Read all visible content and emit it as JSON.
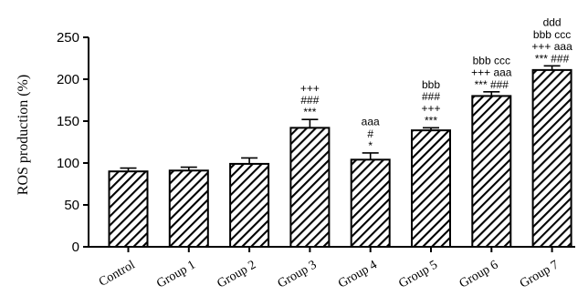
{
  "chart_data": {
    "type": "bar",
    "title": "",
    "xlabel": "",
    "ylabel": "ROS production (%)",
    "ylim": [
      0,
      250
    ],
    "yticks": [
      0,
      50,
      100,
      150,
      200,
      250
    ],
    "categories": [
      "Control",
      "Group 1",
      "Group 2",
      "Group 3",
      "Group 4",
      "Group 5",
      "Group 6",
      "Group 7"
    ],
    "series": [
      {
        "values": [
          90,
          91,
          99,
          142,
          104,
          139,
          180,
          211
        ],
        "errors": [
          4,
          4,
          7,
          10,
          8,
          3,
          5,
          5
        ]
      }
    ],
    "bar_pattern": "diagonal-hatch",
    "annotations": [
      [],
      [],
      [],
      [
        "+++",
        "###",
        "***"
      ],
      [
        "aaa",
        "#",
        "*"
      ],
      [
        "bbb",
        "###",
        "+++",
        "***"
      ],
      [
        "bbb ccc",
        "+++ aaa",
        "*** ###"
      ],
      [
        "ddd",
        "bbb ccc",
        "+++ aaa",
        "*** ###"
      ]
    ]
  }
}
